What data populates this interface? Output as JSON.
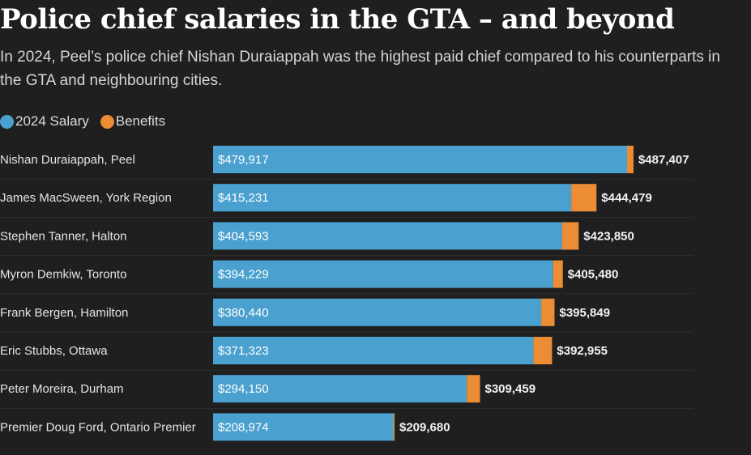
{
  "title": "Police chief salaries in the GTA – and beyond",
  "subtitle": "In 2024, Peel’s police chief Nishan Duraiappah was the highest paid chief compared to his counterparts in the GTA and neighbouring cities.",
  "colors": {
    "salary": "#4aa0cf",
    "benefits": "#ec8c35",
    "background": "#1f1f1f",
    "text": "#e8e8e8"
  },
  "chart_data": {
    "type": "bar",
    "orientation": "horizontal",
    "stacked": true,
    "categories": [
      "Nishan Duraiappah, Peel",
      "James MacSween, York Region",
      "Stephen Tanner, Halton",
      "Myron Demkiw, Toronto",
      "Frank Bergen, Hamilton",
      "Eric Stubbs, Ottawa",
      "Peter Moreira, Durham",
      "Premier Doug Ford, Ontario Premier"
    ],
    "series": [
      {
        "name": "2024 Salary",
        "values": [
          479917,
          415231,
          404593,
          394229,
          380440,
          371323,
          294150,
          208974
        ],
        "labels": [
          "$479,917",
          "$415,231",
          "$404,593",
          "$394,229",
          "$380,440",
          "$371,323",
          "$294,150",
          "$208,974"
        ]
      },
      {
        "name": "Benefits",
        "values": [
          7490,
          29248,
          19257,
          11251,
          15409,
          21632,
          15309,
          706
        ]
      }
    ],
    "totals": [
      487407,
      444479,
      423850,
      405480,
      395849,
      392955,
      309459,
      209680
    ],
    "total_labels": [
      "$487,407",
      "$444,479",
      "$423,850",
      "$405,480",
      "$395,849",
      "$392,955",
      "$309,459",
      "$209,680"
    ],
    "xlim": [
      0,
      500000
    ],
    "legend_position": "top-left"
  }
}
